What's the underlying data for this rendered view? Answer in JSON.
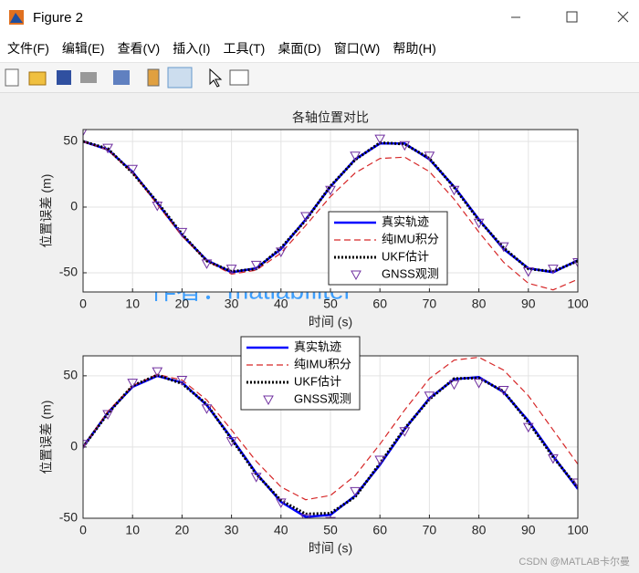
{
  "window": {
    "title": "Figure 2",
    "menu": [
      "文件(F)",
      "编辑(E)",
      "查看(V)",
      "插入(I)",
      "工具(T)",
      "桌面(D)",
      "窗口(W)",
      "帮助(H)"
    ]
  },
  "watermark": "作者：matlabfilter",
  "credit": "CSDN @MATLAB卡尔曼",
  "chart_data": [
    {
      "type": "line",
      "title": "各轴位置对比",
      "xlabel": "时间 (s)",
      "ylabel": "位置误差 (m)",
      "x": [
        0,
        5,
        10,
        15,
        20,
        25,
        30,
        35,
        40,
        45,
        50,
        55,
        60,
        65,
        70,
        75,
        80,
        85,
        90,
        95,
        100
      ],
      "xlim": [
        0,
        100
      ],
      "xticks": [
        0,
        10,
        20,
        30,
        40,
        50,
        60,
        70,
        80,
        90,
        100
      ],
      "ylim": [
        -64.6,
        59
      ],
      "yticks": [
        -50,
        0,
        50
      ],
      "grid": true,
      "series": [
        {
          "name": "真实轨迹",
          "color": "#0000ff",
          "style": "solid",
          "values": [
            50,
            43.8,
            26.8,
            3.1,
            -21.3,
            -40.5,
            -49.6,
            -46.5,
            -31.9,
            -9.4,
            15.5,
            36.4,
            48.4,
            48.4,
            36.4,
            15.5,
            -9.4,
            -31.9,
            -46.5,
            -49.6,
            -40.5
          ]
        },
        {
          "name": "纯IMU积分",
          "color": "#d62728",
          "style": "dashed",
          "values": [
            50,
            43.5,
            26,
            2,
            -22,
            -41,
            -51,
            -48,
            -35,
            -14,
            8,
            26,
            37,
            38,
            27,
            6,
            -19,
            -42,
            -58,
            -63,
            -55
          ]
        },
        {
          "name": "UKF估计",
          "color": "#000000",
          "style": "dotted",
          "values": [
            50,
            44.5,
            26,
            3.8,
            -20.5,
            -41,
            -49,
            -47,
            -31,
            -10,
            16,
            36,
            49,
            48,
            37,
            15,
            -10,
            -31,
            -47,
            -49,
            -41
          ]
        },
        {
          "name": "GNSS观测",
          "color": "#7030a0",
          "style": "marker",
          "values": [
            58,
            45,
            29,
            1,
            -19,
            -43,
            -47,
            -44,
            -34,
            -7,
            13,
            39,
            52,
            47,
            39,
            13,
            -12,
            -30,
            -49,
            -47,
            -42
          ]
        }
      ]
    },
    {
      "type": "line",
      "xlabel": "时间 (s)",
      "ylabel": "位置误差 (m)",
      "x": [
        0,
        5,
        10,
        15,
        20,
        25,
        30,
        35,
        40,
        45,
        50,
        55,
        60,
        65,
        70,
        75,
        80,
        85,
        90,
        95,
        100
      ],
      "xlim": [
        0,
        100
      ],
      "xticks": [
        0,
        10,
        20,
        30,
        40,
        50,
        60,
        70,
        80,
        90,
        100
      ],
      "ylim": [
        -50,
        64
      ],
      "yticks": [
        -50,
        0,
        50
      ],
      "grid": true,
      "series": [
        {
          "name": "真实轨迹",
          "color": "#0000ff",
          "style": "solid",
          "values": [
            0,
            24.1,
            42.2,
            49.9,
            45.3,
            29.4,
            6.3,
            -18.4,
            -38.5,
            -49.1,
            -47.6,
            -34.2,
            -12.5,
            12.5,
            34.2,
            47.6,
            49.1,
            38.5,
            18.4,
            -6.3,
            -29.4
          ]
        },
        {
          "name": "纯IMU积分",
          "color": "#d62728",
          "style": "dashed",
          "values": [
            0,
            25,
            43,
            51,
            47,
            33,
            12,
            -10,
            -28,
            -37,
            -34,
            -20,
            2,
            26,
            48,
            61,
            63,
            54,
            36,
            12,
            -12
          ]
        },
        {
          "name": "UKF估计",
          "color": "#000000",
          "style": "dotted",
          "values": [
            0,
            23.5,
            43,
            50.5,
            44.5,
            30,
            5.5,
            -19,
            -37.5,
            -47,
            -46.5,
            -35,
            -11.5,
            13,
            33.5,
            48,
            48.5,
            39,
            17.5,
            -7,
            -28.5
          ]
        },
        {
          "name": "GNSS观测",
          "color": "#7030a0",
          "style": "marker",
          "values": [
            2,
            23,
            45,
            53,
            47,
            27,
            4,
            -21,
            -39,
            -50,
            -52,
            -31,
            -9,
            11,
            36,
            44,
            45,
            40,
            14,
            -8,
            -25
          ]
        }
      ]
    }
  ]
}
